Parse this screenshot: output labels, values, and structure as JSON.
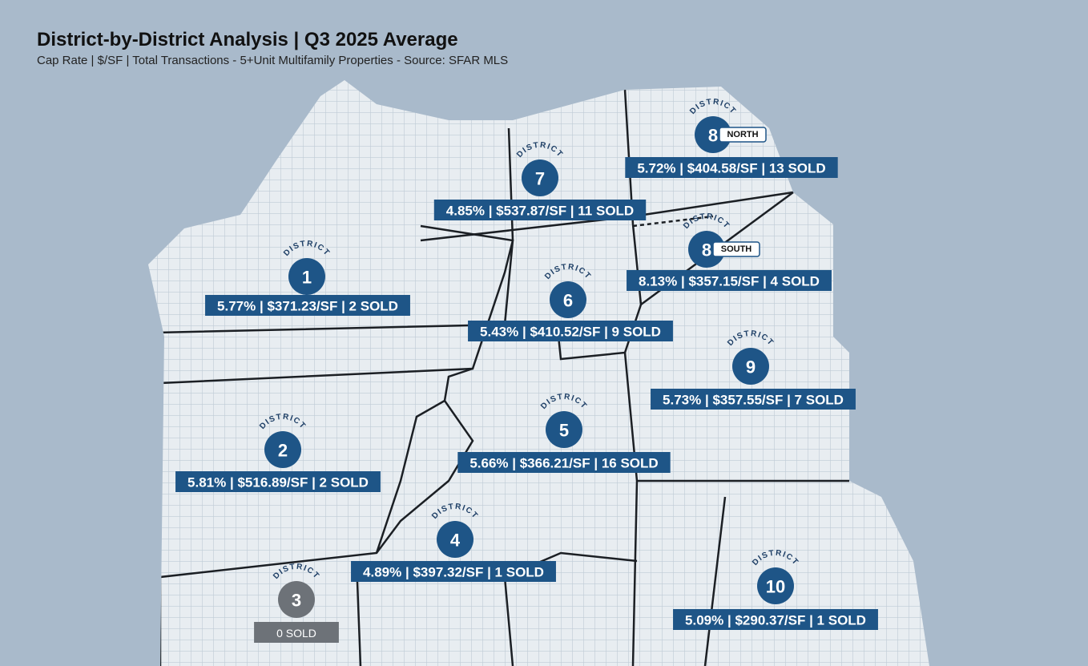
{
  "header": {
    "title": "District-by-District Analysis | Q3 2025 Average",
    "subtitle": "Cap Rate | $/SF | Total Transactions - 5+Unit Multifamily Properties - Source: SFAR MLS"
  },
  "districts": [
    {
      "word": "DISTRICT",
      "number": "7",
      "stats": "4.85% | $537.87/SF | 11 SOLD"
    },
    {
      "word": "DISTRICT",
      "number": "8",
      "tag": "NORTH",
      "stats": "5.72% | $404.58/SF | 13 SOLD"
    },
    {
      "word": "DISTRICT",
      "number": "8",
      "tag": "SOUTH",
      "stats": "8.13% | $357.15/SF | 4 SOLD"
    },
    {
      "word": "DISTRICT",
      "number": "1",
      "stats": "5.77% | $371.23/SF | 2 SOLD"
    },
    {
      "word": "DISTRICT",
      "number": "6",
      "stats": "5.43% | $410.52/SF | 9 SOLD"
    },
    {
      "word": "DISTRICT",
      "number": "9",
      "stats": "5.73% | $357.55/SF | 7 SOLD"
    },
    {
      "word": "DISTRICT",
      "number": "2",
      "stats": "5.81% | $516.89/SF | 2 SOLD"
    },
    {
      "word": "DISTRICT",
      "number": "5",
      "stats": "5.66% | $366.21/SF | 16 SOLD"
    },
    {
      "word": "DISTRICT",
      "number": "4",
      "stats": "4.89% | $397.32/SF | 1 SOLD"
    },
    {
      "word": "DISTRICT",
      "number": "10",
      "stats": "5.09% | $290.37/SF | 1 SOLD"
    },
    {
      "word": "DISTRICT",
      "number": "3",
      "stats": "0 SOLD"
    }
  ]
}
